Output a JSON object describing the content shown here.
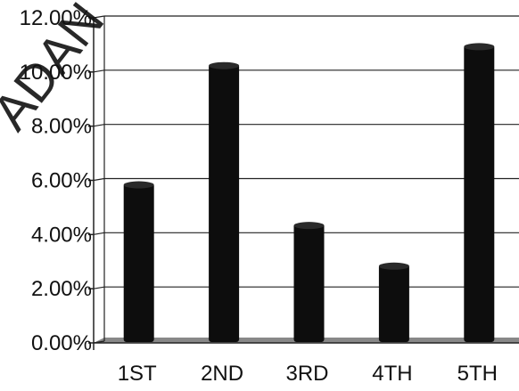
{
  "chart_data": {
    "type": "bar",
    "categories": [
      "1ST",
      "2ND",
      "3RD",
      "4TH",
      "5TH"
    ],
    "values": [
      5.9,
      10.3,
      4.4,
      2.9,
      11.0
    ],
    "value_unit": "%",
    "ylim": [
      0,
      12
    ],
    "yticks": [
      "0.00%",
      "2.00%",
      "4.00%",
      "6.00%",
      "8.00%",
      "10.00%",
      "12.00%"
    ],
    "grid": true,
    "legend": "none",
    "colors": {
      "bar": "#0d0d0d",
      "bar_cap": "#2a2a2a",
      "grid": "#222222",
      "floor": "#888888",
      "watermark": "#ffe000"
    },
    "watermark": "ADAN"
  }
}
